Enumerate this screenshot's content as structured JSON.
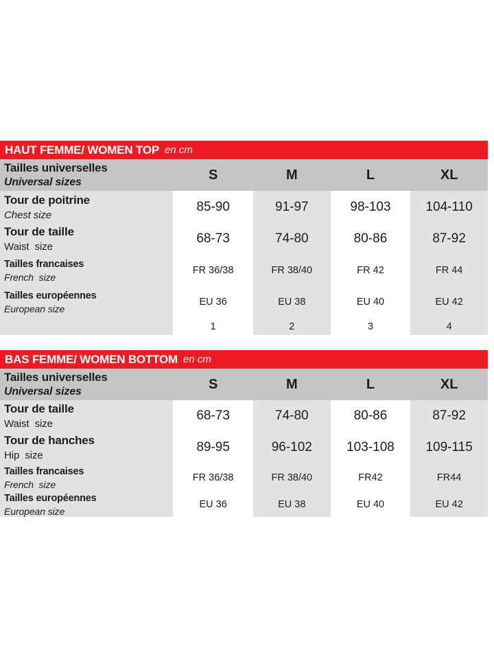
{
  "colors": {
    "accent_red": "#ed1b24",
    "header_gray": "#c5c5c5",
    "cell_gray": "#e2e2e2",
    "text": "#1c1c1c"
  },
  "tables": [
    {
      "title": "HAUT FEMME/ WOMEN TOP",
      "unit": "en cm",
      "size_header": {
        "label_fr": "Tailles universelles",
        "label_en": "Universal sizes",
        "sizes": [
          "S",
          "M",
          "L",
          "XL"
        ]
      },
      "rows": [
        {
          "label_fr": "Tour de poitrine",
          "label_en": "Chest size",
          "values": [
            "85-90",
            "91-97",
            "98-103",
            "104-110"
          ]
        },
        {
          "label_fr": "Tour de taille",
          "label_en": "Waist  size",
          "values": [
            "68-73",
            "74-80",
            "80-86",
            "87-92"
          ]
        },
        {
          "label_fr": "Tailles francaises",
          "label_en": "French  size",
          "values": [
            "FR 36/38",
            "FR 38/40",
            "FR 42",
            "FR 44"
          ]
        },
        {
          "label_fr": "Tailles européennes",
          "label_en": "European size",
          "values": [
            "EU 36",
            "EU 38",
            "EU 40",
            "EU 42"
          ]
        },
        {
          "label_fr": "",
          "label_en": "",
          "values": [
            "1",
            "2",
            "3",
            "4"
          ]
        }
      ]
    },
    {
      "title": "BAS FEMME/ WOMEN BOTTOM",
      "unit": "en cm",
      "size_header": {
        "label_fr": "Tailles universelles",
        "label_en": "Universal sizes",
        "sizes": [
          "S",
          "M",
          "L",
          "XL"
        ]
      },
      "rows": [
        {
          "label_fr": "Tour de taille",
          "label_en": "Waist  size",
          "values": [
            "68-73",
            "74-80",
            "80-86",
            "87-92"
          ]
        },
        {
          "label_fr": "Tour de hanches",
          "label_en": "Hip  size",
          "values": [
            "89-95",
            "96-102",
            "103-108",
            "109-115"
          ]
        },
        {
          "label_fr": "Tailles francaises",
          "label_en": "French  size",
          "values": [
            "FR 36/38",
            "FR 38/40",
            "FR42",
            "FR44"
          ]
        },
        {
          "label_fr": "Tailles européennes",
          "label_en": "European size",
          "values": [
            "EU 36",
            "EU 38",
            "EU 40",
            "EU 42"
          ]
        }
      ]
    }
  ]
}
